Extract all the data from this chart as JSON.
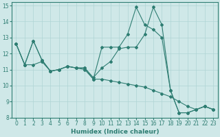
{
  "xlabel": "Humidex (Indice chaleur)",
  "xlim": [
    -0.5,
    23.5
  ],
  "ylim": [
    8,
    15.2
  ],
  "xticks": [
    0,
    1,
    2,
    3,
    4,
    5,
    6,
    7,
    8,
    9,
    10,
    11,
    12,
    13,
    14,
    15,
    16,
    17,
    18,
    19,
    20,
    21,
    22,
    23
  ],
  "yticks": [
    8,
    9,
    10,
    11,
    12,
    13,
    14,
    15
  ],
  "bg_color": "#cfe8e8",
  "grid_color": "#afd4d4",
  "line_color": "#2e7d72",
  "line1_x": [
    0,
    1,
    2,
    3,
    4,
    5,
    6,
    7,
    8,
    9,
    10,
    11,
    12,
    13,
    14,
    15,
    16,
    17,
    18,
    19,
    20,
    21,
    22,
    23
  ],
  "line1_y": [
    12.6,
    11.3,
    12.8,
    11.6,
    10.9,
    11.0,
    11.2,
    11.1,
    11.1,
    10.4,
    12.4,
    12.4,
    12.4,
    13.2,
    14.9,
    13.8,
    13.5,
    13.0,
    9.7,
    8.3,
    8.3,
    8.5,
    8.7,
    8.5
  ],
  "line2_x": [
    0,
    1,
    2,
    3,
    4,
    5,
    6,
    7,
    8,
    9,
    10,
    11,
    12,
    13,
    14,
    15,
    16,
    17,
    18,
    19,
    20,
    21,
    22,
    23
  ],
  "line2_y": [
    12.6,
    11.3,
    12.8,
    11.6,
    10.9,
    11.0,
    11.2,
    11.1,
    11.1,
    10.5,
    11.1,
    11.5,
    12.3,
    12.4,
    12.4,
    13.2,
    14.9,
    13.8,
    9.7,
    8.3,
    8.3,
    8.5,
    8.7,
    8.5
  ],
  "line3_x": [
    0,
    1,
    2,
    3,
    4,
    5,
    6,
    7,
    8,
    9,
    10,
    11,
    12,
    13,
    14,
    15,
    16,
    17,
    18,
    19,
    20,
    21,
    22,
    23
  ],
  "line3_y": [
    12.6,
    11.3,
    11.3,
    11.5,
    10.9,
    11.0,
    11.2,
    11.1,
    11.0,
    10.4,
    10.4,
    10.3,
    10.2,
    10.1,
    10.0,
    9.9,
    9.7,
    9.5,
    9.3,
    9.0,
    8.7,
    8.5,
    8.7,
    8.5
  ]
}
